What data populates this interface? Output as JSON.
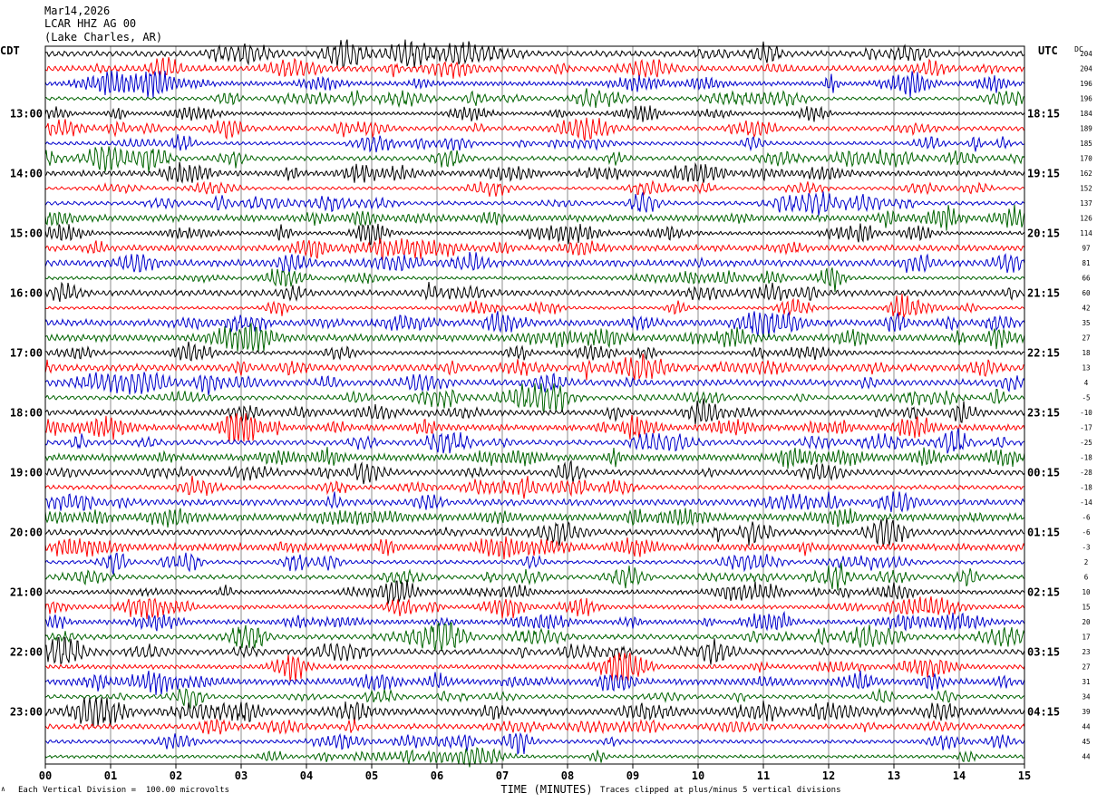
{
  "header": {
    "date": "Mar14,2026",
    "station": "LCAR HHZ AG 00",
    "location": "(Lake Charles, AR)"
  },
  "footer": {
    "scale_note": "Each Vertical Division =  100.00 microvolts",
    "clip_note": "Traces clipped at plus/minus 5 vertical divisions",
    "xlabel": "TIME (MINUTES)"
  },
  "chart_data": {
    "type": "line",
    "title": "Mar14,2026 LCAR HHZ AG 00 (Lake Charles, AR)",
    "xlabel": "TIME (MINUTES)",
    "left_axis_label": "CDT",
    "right_axis_label": "UTC",
    "dc_label": "DC",
    "xlim": [
      0,
      15
    ],
    "x_ticks": [
      "00",
      "01",
      "02",
      "03",
      "04",
      "05",
      "06",
      "07",
      "08",
      "09",
      "10",
      "11",
      "12",
      "13",
      "14",
      "15"
    ],
    "trace_count": 48,
    "trace_colors": [
      "#000000",
      "#ff0000",
      "#0000cc",
      "#006400"
    ],
    "left_time_labels": [
      "13:00",
      "14:00",
      "15:00",
      "16:00",
      "17:00",
      "18:00",
      "19:00",
      "20:00",
      "21:00",
      "22:00",
      "23:00"
    ],
    "right_time_labels": [
      "18:15",
      "19:15",
      "20:15",
      "21:15",
      "22:15",
      "23:15",
      "00:15",
      "01:15",
      "02:15",
      "03:15",
      "04:15"
    ],
    "dc_offsets": [
      "204",
      "204",
      "196",
      "196",
      "184",
      "189",
      "185",
      "170",
      "162",
      "152",
      "137",
      "126",
      "114",
      "97",
      "81",
      "66",
      "60",
      "42",
      "35",
      "27",
      "18",
      "13",
      "4",
      "-5",
      "-10",
      "-17",
      "-25",
      "-18",
      "-28",
      "-18",
      "-14",
      "-6",
      "-6",
      "-3",
      "2",
      "6",
      "10",
      "15",
      "20",
      "17",
      "23",
      "27",
      "31",
      "34",
      "39",
      "44",
      "45",
      "44"
    ],
    "grid": true
  }
}
